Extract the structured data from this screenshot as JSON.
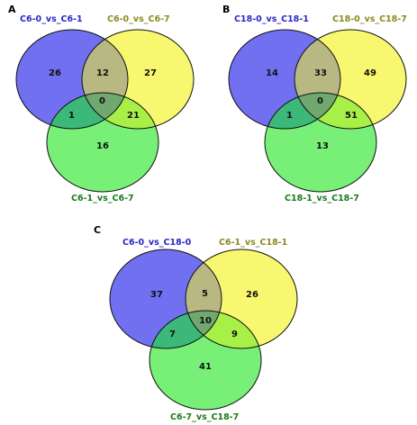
{
  "colors": {
    "set1_fill": "#7070f0",
    "set2_fill": "#f8f870",
    "set3_fill": "#68e868",
    "set1_label": "#2828c8",
    "set2_label": "#8a8a20",
    "set3_label": "#1a7a1a"
  },
  "panels": [
    {
      "letter": "A",
      "sets": [
        "C6-0_vs_C6-1",
        "C6-0_vs_C6-7",
        "C6-1_vs_C6-7"
      ],
      "counts": {
        "only1": "26",
        "only2": "27",
        "only3": "16",
        "r12": "12",
        "r13": "1",
        "r23": "21",
        "r123": "0"
      }
    },
    {
      "letter": "B",
      "sets": [
        "C18-0_vs_C18-1",
        "C18-0_vs_C18-7",
        "C18-1_vs_C18-7"
      ],
      "counts": {
        "only1": "14",
        "only2": "49",
        "only3": "13",
        "r12": "33",
        "r13": "1",
        "r23": "51",
        "r123": "0"
      }
    },
    {
      "letter": "C",
      "sets": [
        "C6-0_vs_C18-0",
        "C6-1_vs_C18-1",
        "C6-7_vs_C18-7"
      ],
      "counts": {
        "only1": "37",
        "only2": "26",
        "only3": "41",
        "r12": "5",
        "r13": "7",
        "r23": "9",
        "r123": "10"
      }
    }
  ]
}
